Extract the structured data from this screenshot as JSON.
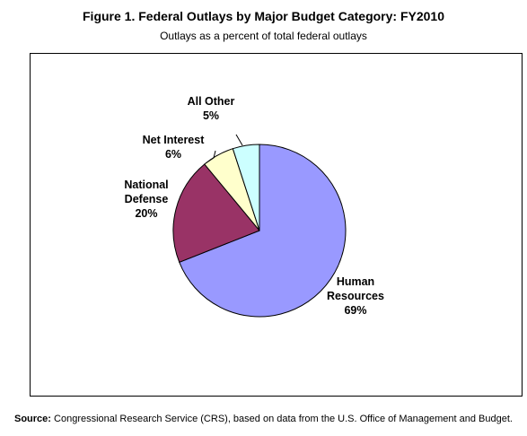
{
  "title": "Figure 1. Federal Outlays by Major Budget Category: FY2010",
  "subtitle": "Outlays as a percent of total federal outlays",
  "source": {
    "label": "Source:",
    "text": " Congressional Research Service (CRS), based on data from the U.S. Office of Management and Budget."
  },
  "colors": {
    "human_resources": "#9999ff",
    "national_defense": "#993366",
    "net_interest": "#ffffcc",
    "all_other": "#ccffff"
  },
  "chart_data": {
    "type": "pie",
    "title": "Figure 1. Federal Outlays by Major Budget Category: FY2010",
    "subtitle": "Outlays as a percent of total federal outlays",
    "slices": [
      {
        "label_lines": [
          "Human",
          "Resources"
        ],
        "value_label": "69%",
        "value": 69,
        "color": "#9999ff"
      },
      {
        "label_lines": [
          "National",
          "Defense"
        ],
        "value_label": "20%",
        "value": 20,
        "color": "#993366"
      },
      {
        "label_lines": [
          "Net Interest"
        ],
        "value_label": "6%",
        "value": 6,
        "color": "#ffffcc"
      },
      {
        "label_lines": [
          "All Other"
        ],
        "value_label": "5%",
        "value": 5,
        "color": "#ccffff"
      }
    ]
  }
}
